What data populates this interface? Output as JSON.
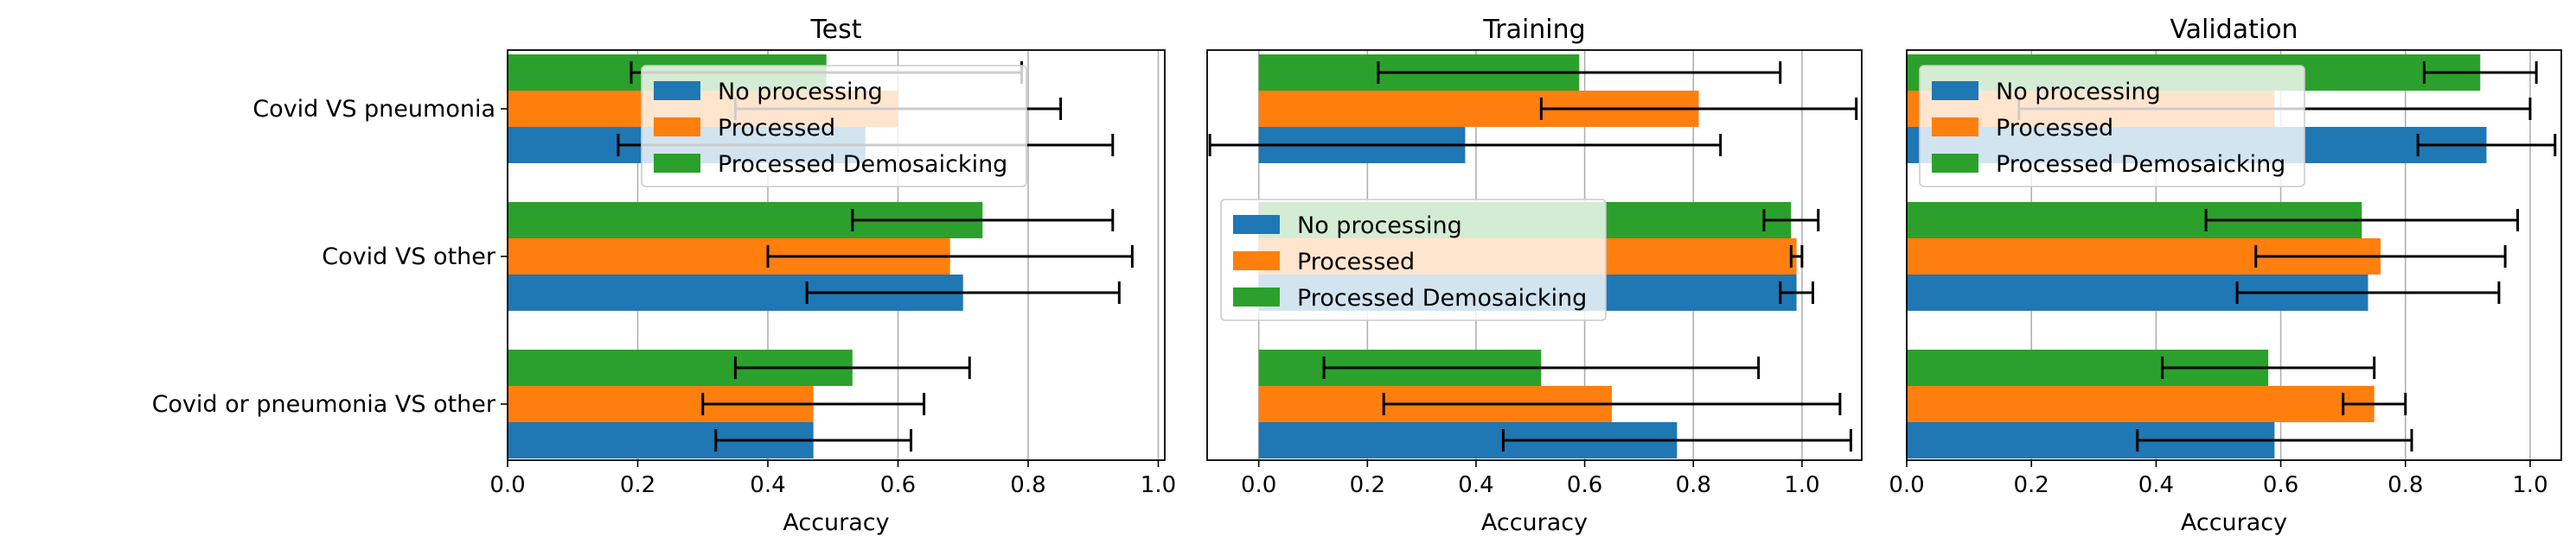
{
  "chart_data": [
    {
      "type": "bar",
      "orientation": "horizontal",
      "title": "Test",
      "xlabel": "Accuracy",
      "ylabel": "",
      "xlim": [
        0,
        1.01
      ],
      "xticks": [
        "0.0",
        "0.2",
        "0.4",
        "0.6",
        "0.8",
        "1.0"
      ],
      "grid": "x",
      "legend_placement": "top-center",
      "categories": [
        "Covid VS pneumonia",
        "Covid VS other",
        "Covid or pneumonia VS other"
      ],
      "series": [
        {
          "name": "No processing",
          "color": "#1f77b4",
          "values": [
            0.55,
            0.7,
            0.47
          ],
          "errors": [
            0.38,
            0.24,
            0.15
          ]
        },
        {
          "name": "Processed",
          "color": "#ff7f0e",
          "values": [
            0.6,
            0.68,
            0.47
          ],
          "errors": [
            0.25,
            0.28,
            0.17
          ]
        },
        {
          "name": "Processed Demosaicking",
          "color": "#2ca02c",
          "values": [
            0.49,
            0.73,
            0.53
          ],
          "errors": [
            0.3,
            0.2,
            0.18
          ]
        }
      ]
    },
    {
      "type": "bar",
      "orientation": "horizontal",
      "title": "Training",
      "xlabel": "Accuracy",
      "ylabel": "",
      "xlim": [
        -0.095,
        1.11
      ],
      "xticks": [
        "0.0",
        "0.2",
        "0.4",
        "0.6",
        "0.8",
        "1.0"
      ],
      "grid": "x",
      "legend_placement": "center-left",
      "categories": [
        "Covid VS pneumonia",
        "Covid VS other",
        "Covid or pneumonia VS other"
      ],
      "series": [
        {
          "name": "No processing",
          "color": "#1f77b4",
          "values": [
            0.38,
            0.99,
            0.77
          ],
          "errors": [
            0.47,
            0.03,
            0.32
          ]
        },
        {
          "name": "Processed",
          "color": "#ff7f0e",
          "values": [
            0.81,
            0.99,
            0.65
          ],
          "errors": [
            0.29,
            0.01,
            0.42
          ]
        },
        {
          "name": "Processed Demosaicking",
          "color": "#2ca02c",
          "values": [
            0.59,
            0.98,
            0.52
          ],
          "errors": [
            0.37,
            0.05,
            0.4
          ]
        }
      ]
    },
    {
      "type": "bar",
      "orientation": "horizontal",
      "title": "Validation",
      "xlabel": "Accuracy",
      "ylabel": "",
      "xlim": [
        0,
        1.05
      ],
      "xticks": [
        "0.0",
        "0.2",
        "0.4",
        "0.6",
        "0.8",
        "1.0"
      ],
      "grid": "x",
      "legend_placement": "top-left",
      "categories": [
        "Covid VS pneumonia",
        "Covid VS other",
        "Covid or pneumonia VS other"
      ],
      "series": [
        {
          "name": "No processing",
          "color": "#1f77b4",
          "values": [
            0.93,
            0.74,
            0.59
          ],
          "errors": [
            0.11,
            0.21,
            0.22
          ]
        },
        {
          "name": "Processed",
          "color": "#ff7f0e",
          "values": [
            0.59,
            0.76,
            0.75
          ],
          "errors": [
            0.41,
            0.2,
            0.05
          ]
        },
        {
          "name": "Processed Demosaicking",
          "color": "#2ca02c",
          "values": [
            0.92,
            0.73,
            0.58
          ],
          "errors": [
            0.09,
            0.25,
            0.17
          ]
        }
      ]
    }
  ]
}
